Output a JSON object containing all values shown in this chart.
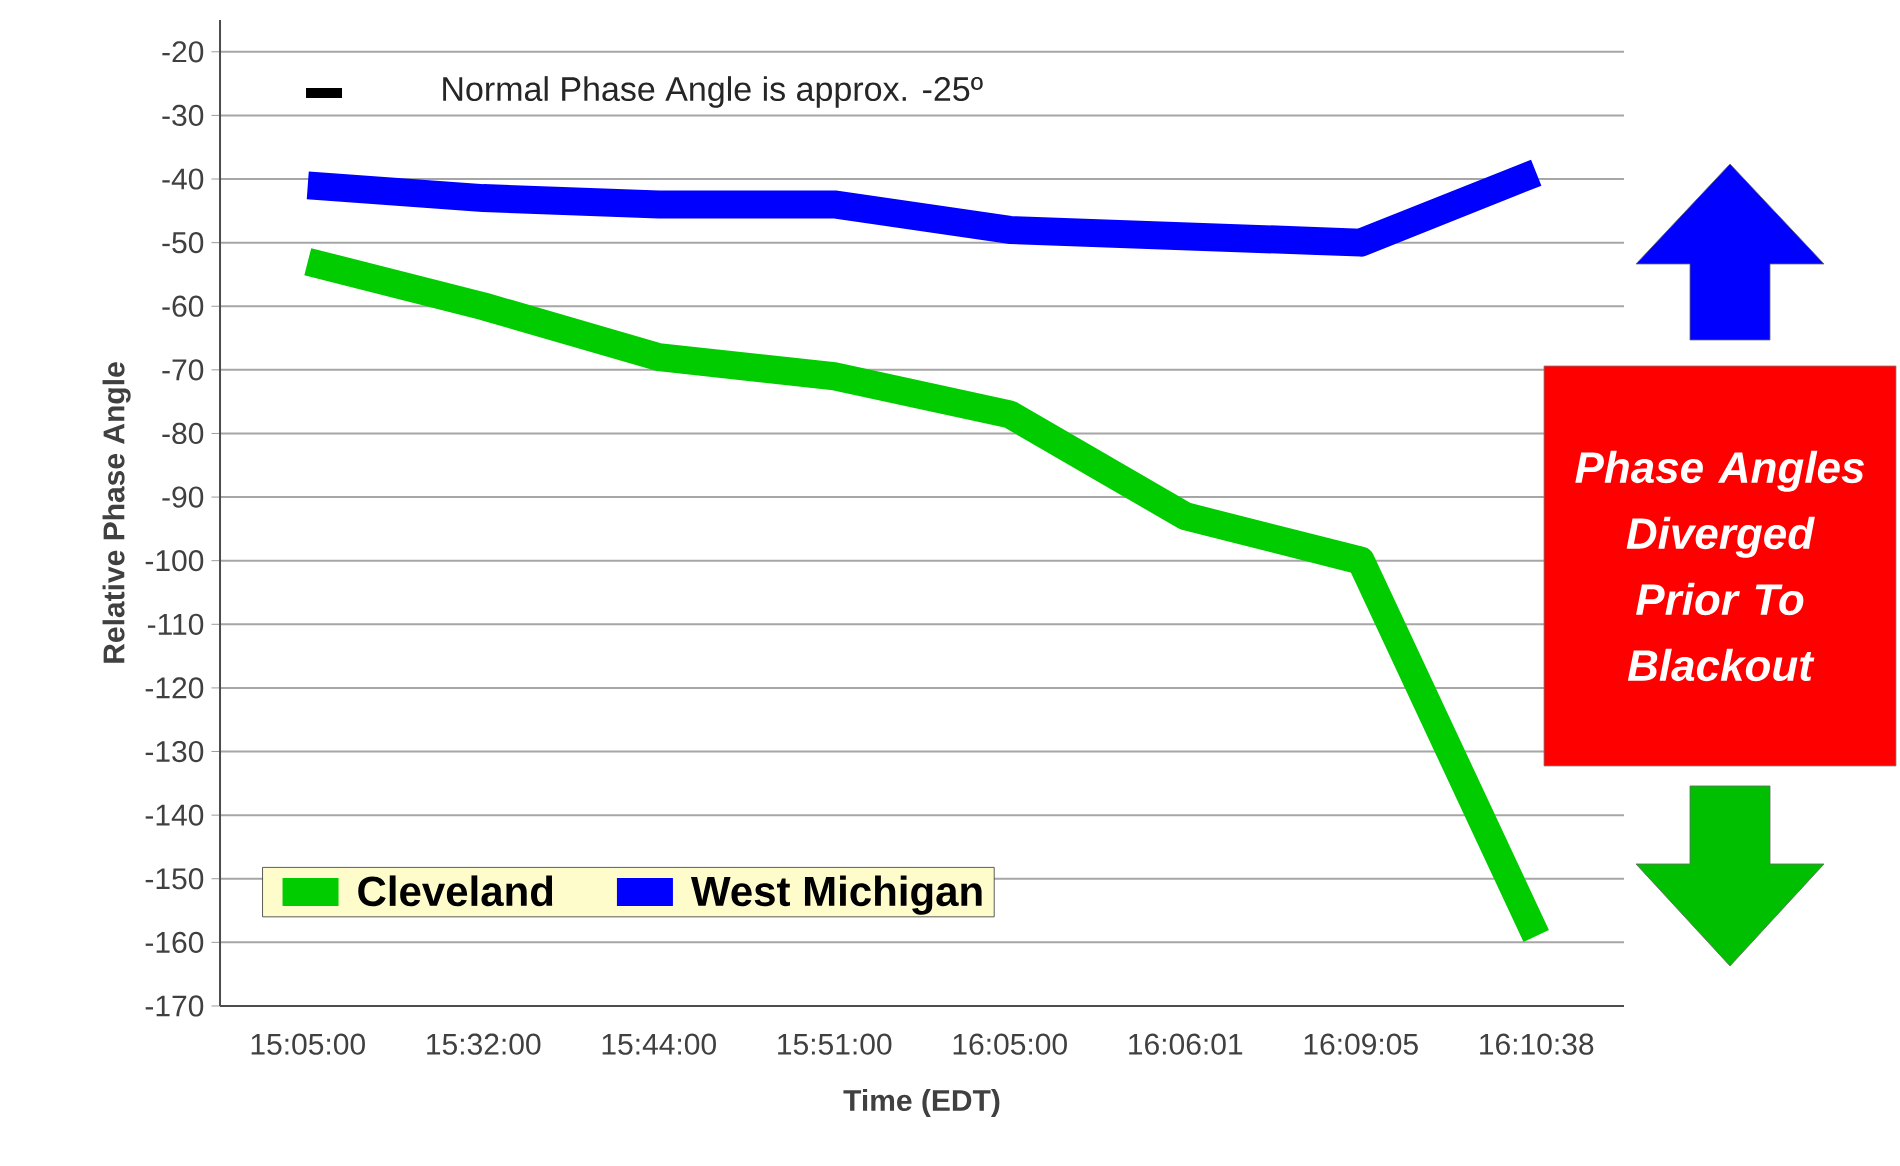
{
  "chart_data": {
    "type": "line",
    "xlabel": "Time (EDT)",
    "ylabel": "Relative Phase Angle",
    "categories": [
      "15:05:00",
      "15:32:00",
      "15:44:00",
      "15:51:00",
      "16:05:00",
      "16:06:01",
      "16:09:05",
      "16:10:38"
    ],
    "series": [
      {
        "name": "Cleveland",
        "color": "#00cc00",
        "values": [
          -53,
          -60,
          -68,
          -71,
          -77,
          -93,
          -100,
          -159
        ]
      },
      {
        "name": "West Michigan",
        "color": "#0000ff",
        "values": [
          -41,
          -43,
          -44,
          -44,
          -48,
          -49,
          -50,
          -39
        ]
      }
    ],
    "ylim": [
      -170,
      -15
    ],
    "yticks": [
      -170,
      -160,
      -150,
      -140,
      -130,
      -120,
      -110,
      -100,
      -90,
      -80,
      -70,
      -60,
      -50,
      -40,
      -30,
      -20
    ],
    "grid": "y",
    "legend": "bottom left",
    "marker": "none",
    "line_style": "solid",
    "annotations": [
      "Normal Phase Angle is approx. -25º",
      "Phase Angles Diverged Prior To Blackout"
    ]
  }
}
